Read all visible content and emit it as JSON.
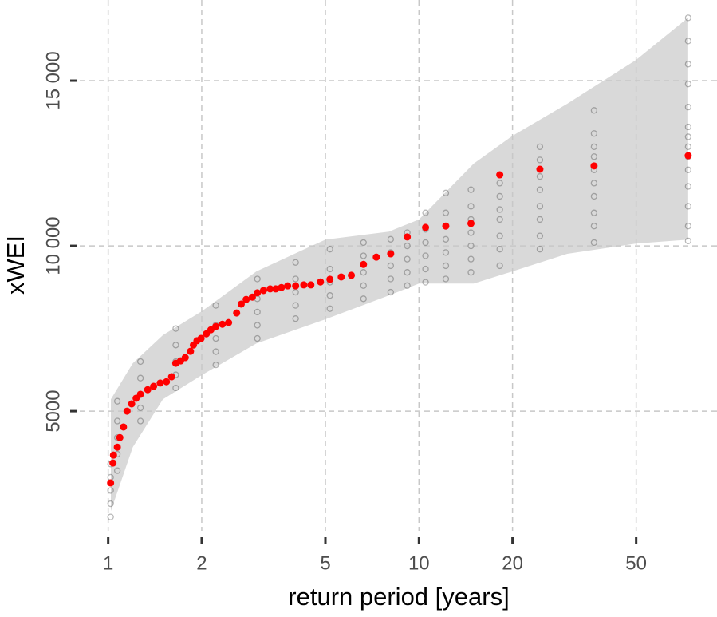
{
  "chart_data": {
    "type": "scatter",
    "x_label": "return period [years]",
    "y_label": "xWEI",
    "xlog": true,
    "grid": true,
    "xlim": [
      0.81,
      91
    ],
    "ylim": [
      1380,
      17440
    ],
    "xticks": [
      1,
      2,
      5,
      10,
      20,
      50
    ],
    "yticks": [
      {
        "value": 5000,
        "label": "5000"
      },
      {
        "value": 10000,
        "label": "10 000"
      },
      {
        "value": 15000,
        "label": "15 000"
      }
    ],
    "band": {
      "color": "#d9d9d9",
      "x": [
        1.02,
        1.2,
        1.5,
        2,
        3,
        5,
        8,
        10,
        15,
        20,
        30,
        50,
        73.5
      ],
      "upper": [
        5360,
        6450,
        7300,
        8020,
        9230,
        10190,
        10430,
        10800,
        12490,
        13330,
        14300,
        15630,
        16910
      ],
      "lower": [
        1980,
        3910,
        5360,
        6090,
        7050,
        7780,
        8500,
        8860,
        8860,
        9230,
        9760,
        10070,
        10190
      ]
    },
    "series": [
      {
        "color": "#333333",
        "marker": "open",
        "x": [
          73.5,
          73.5,
          73.5,
          73.5,
          73.5,
          73.5,
          73.5,
          73.5,
          73.5,
          73.5,
          73.5,
          73.5,
          73.5,
          73.5,
          36.6,
          36.6,
          36.6,
          36.6,
          36.6,
          36.6,
          36.6,
          36.6,
          36.6,
          36.6,
          24.5,
          24.5,
          24.5,
          24.5,
          24.5,
          24.5,
          24.5,
          24.5,
          18.2,
          18.2,
          18.2,
          18.2,
          18.2,
          18.2,
          18.2,
          14.7,
          14.7,
          14.7,
          14.7,
          14.7,
          14.7,
          14.7,
          12.2,
          12.2,
          12.2,
          12.2,
          12.2,
          12.2,
          12.2,
          10.5,
          10.5,
          10.5,
          10.5,
          10.5,
          10.5,
          9.17,
          9.17,
          9.17,
          9.17,
          9.17,
          8.11,
          8.11,
          8.11,
          8.11,
          8.11,
          6.63,
          6.63,
          6.63,
          6.63,
          6.63,
          5.17,
          5.17,
          5.17,
          5.17,
          5.17,
          4.01,
          4.01,
          4.01,
          4.01,
          4.01,
          3.02,
          3.02,
          3.02,
          3.02,
          3.02,
          2.22,
          2.22,
          2.22,
          2.22,
          2.22,
          1.65,
          1.65,
          1.65,
          1.65,
          1.65,
          1.27,
          1.27,
          1.27,
          1.27,
          1.27,
          1.07,
          1.07,
          1.07,
          1.07,
          1.07,
          1.018,
          1.018,
          1.018,
          1.018,
          1.018
        ],
        "values": [
          10150,
          10600,
          11200,
          11800,
          12300,
          12700,
          13000,
          13300,
          13600,
          14200,
          14900,
          15500,
          16200,
          16900,
          10100,
          10600,
          11000,
          11500,
          11900,
          12300,
          12700,
          13000,
          13400,
          14100,
          9900,
          10300,
          10800,
          11200,
          11700,
          12100,
          12600,
          13000,
          9400,
          9900,
          10300,
          10800,
          11100,
          11500,
          11900,
          9200,
          9600,
          10000,
          10400,
          10800,
          11200,
          11700,
          9000,
          9400,
          9800,
          10200,
          10600,
          11000,
          11600,
          8900,
          9300,
          9700,
          10100,
          10500,
          11000,
          8800,
          9200,
          9600,
          10000,
          10400,
          8600,
          9000,
          9400,
          9800,
          10200,
          8400,
          8800,
          9200,
          9700,
          10100,
          8100,
          8500,
          8900,
          9300,
          9900,
          7800,
          8200,
          8600,
          9000,
          9500,
          7200,
          7600,
          8000,
          8400,
          9000,
          6400,
          6800,
          7200,
          7600,
          8200,
          5700,
          6100,
          6500,
          7000,
          7500,
          4700,
          5100,
          5500,
          6000,
          6500,
          3200,
          3700,
          4200,
          4700,
          5300,
          1800,
          2200,
          2600,
          3000,
          3400
        ]
      },
      {
        "color": "#ff0000",
        "marker": "filled",
        "x": [
          73.5,
          36.6,
          24.5,
          18.2,
          14.7,
          12.2,
          10.5,
          9.17,
          8.11,
          7.29,
          6.63,
          6.06,
          5.62,
          5.17,
          4.82,
          4.49,
          4.26,
          4.01,
          3.78,
          3.61,
          3.46,
          3.32,
          3.16,
          3.02,
          2.91,
          2.78,
          2.68,
          2.59,
          2.44,
          2.33,
          2.22,
          2.14,
          2.07,
          1.99,
          1.93,
          1.88,
          1.84,
          1.77,
          1.71,
          1.65,
          1.6,
          1.54,
          1.47,
          1.4,
          1.34,
          1.27,
          1.23,
          1.19,
          1.15,
          1.12,
          1.09,
          1.07,
          1.04,
          1.036,
          1.018
        ],
        "values": [
          12730,
          12420,
          12320,
          12150,
          10680,
          10600,
          10560,
          10270,
          9760,
          9660,
          9440,
          9110,
          9060,
          8990,
          8910,
          8820,
          8820,
          8790,
          8790,
          8740,
          8700,
          8700,
          8650,
          8580,
          8450,
          8380,
          8240,
          7970,
          7680,
          7630,
          7560,
          7460,
          7340,
          7200,
          7130,
          7000,
          6810,
          6620,
          6520,
          6450,
          6040,
          5890,
          5850,
          5750,
          5650,
          5510,
          5390,
          5220,
          5000,
          4520,
          4200,
          3910,
          3670,
          3430,
          2830
        ]
      }
    ]
  }
}
